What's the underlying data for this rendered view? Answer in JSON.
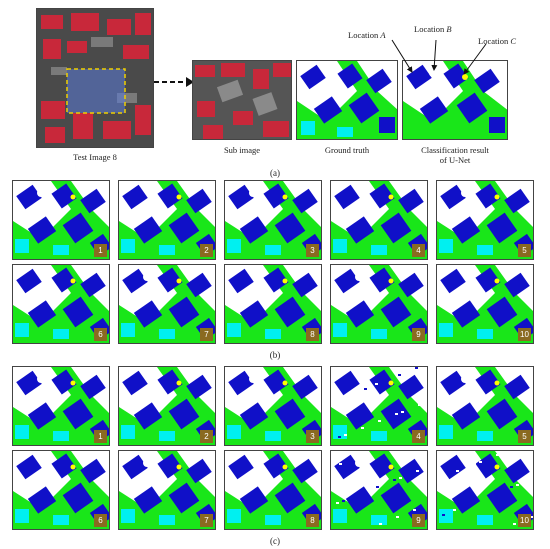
{
  "colors": {
    "building": "#1010c8",
    "vegetation": "#19e619",
    "impervious": "#ffffff",
    "low_veg": "#00f0f0",
    "clutter": "#ff2020",
    "car": "#ffff00",
    "aerial_red": "#c8283a",
    "aerial_dark": "#3a3a3a",
    "label_bg": "#8a6a20"
  },
  "figure_a": {
    "test_image_caption": "Test Image 8",
    "sub_image_caption": "Sub image",
    "ground_truth_caption": "Ground truth",
    "classification_caption_line1": "Classification result",
    "classification_caption_line2": "of U-Net",
    "location_a_word": "Location",
    "location_a_letter": "A",
    "location_b_word": "Location",
    "location_b_letter": "B",
    "location_c_word": "Location",
    "location_c_letter": "C",
    "panel_label": "(a)"
  },
  "figure_b": {
    "panel_label": "(b)",
    "tiles": [
      "1",
      "2",
      "3",
      "4",
      "5",
      "6",
      "7",
      "8",
      "9",
      "10"
    ]
  },
  "figure_c": {
    "panel_label": "(c)",
    "tiles": [
      "1",
      "2",
      "3",
      "4",
      "5",
      "6",
      "7",
      "8",
      "9",
      "10"
    ]
  }
}
